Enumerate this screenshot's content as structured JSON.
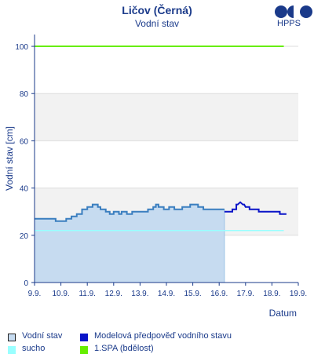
{
  "header": {
    "title": "Ličov (Černá)",
    "subtitle": "Vodní stav",
    "logo_text": "HPPS"
  },
  "chart_data": {
    "type": "line",
    "title": "Ličov (Černá)",
    "subtitle": "Vodní stav",
    "xlabel": "Datum",
    "ylabel": "Vodní stav [cm]",
    "ylim": [
      0,
      105
    ],
    "xlim": [
      0,
      10
    ],
    "yticks": [
      0,
      20,
      40,
      60,
      80,
      100
    ],
    "xticks": [
      "9.9.",
      "10.9.",
      "11.9.",
      "12.9.",
      "13.9.",
      "14.9.",
      "15.9.",
      "16.9.",
      "17.9.",
      "18.9.",
      "19.9."
    ],
    "grid": true,
    "shaded_bands": [
      [
        20,
        40
      ],
      [
        60,
        80
      ]
    ],
    "legend_position": "bottom",
    "series": [
      {
        "name": "Vodní stav",
        "color": "#3a7ebf",
        "fill": "#c6dbf0",
        "x": [
          0,
          0.8,
          0.8,
          1.2,
          1.2,
          1.4,
          1.4,
          1.6,
          1.6,
          1.8,
          1.8,
          2.0,
          2.0,
          2.2,
          2.2,
          2.4,
          2.4,
          2.5,
          2.5,
          2.7,
          2.7,
          2.85,
          2.85,
          3.0,
          3.0,
          3.2,
          3.2,
          3.3,
          3.3,
          3.5,
          3.5,
          3.7,
          3.7,
          4.3,
          4.3,
          4.5,
          4.5,
          4.6,
          4.6,
          4.7,
          4.7,
          4.9,
          4.9,
          5.1,
          5.1,
          5.3,
          5.3,
          5.6,
          5.6,
          5.9,
          5.9,
          6.2,
          6.2,
          6.4,
          6.4,
          7.2
        ],
        "values": [
          27,
          27,
          26,
          26,
          27,
          27,
          28,
          28,
          29,
          29,
          31,
          31,
          32,
          32,
          33,
          33,
          32,
          32,
          31,
          31,
          30,
          30,
          29,
          29,
          30,
          30,
          29,
          29,
          30,
          30,
          29,
          29,
          30,
          30,
          31,
          31,
          32,
          32,
          33,
          33,
          32,
          32,
          31,
          31,
          32,
          32,
          31,
          31,
          32,
          32,
          33,
          33,
          32,
          32,
          31,
          31
        ]
      },
      {
        "name": "Modelová předpověď vodního stavu",
        "color": "#0a14c8",
        "x": [
          7.2,
          7.5,
          7.5,
          7.65,
          7.65,
          7.7,
          7.8,
          7.9,
          7.95,
          8.0,
          8.0,
          8.15,
          8.15,
          8.5,
          8.5,
          9.3,
          9.3,
          9.55
        ],
        "values": [
          30,
          30,
          31,
          31,
          33,
          33,
          34,
          33,
          33,
          32,
          32,
          32,
          31,
          31,
          30,
          30,
          29,
          29
        ]
      },
      {
        "name": "sucho",
        "color": "#99ffff",
        "x": [
          0,
          9.45
        ],
        "values": [
          22,
          22
        ]
      },
      {
        "name": "1.SPA (bdělost)",
        "color": "#66ee00",
        "x": [
          0,
          9.45
        ],
        "values": [
          100,
          100
        ]
      }
    ]
  },
  "legend": [
    {
      "label": "Vodní stav",
      "swatch_fill": "#c6dbf0",
      "swatch_border": "#222222"
    },
    {
      "label": "Modelová předpověď vodního stavu",
      "swatch_fill": "#0a14c8",
      "swatch_border": "#0a14c8"
    },
    {
      "label": "sucho",
      "swatch_fill": "#99ffff",
      "swatch_border": "#99ffff"
    },
    {
      "label": "1.SPA (bdělost)",
      "swatch_fill": "#66ee00",
      "swatch_border": "#66ee00"
    }
  ]
}
